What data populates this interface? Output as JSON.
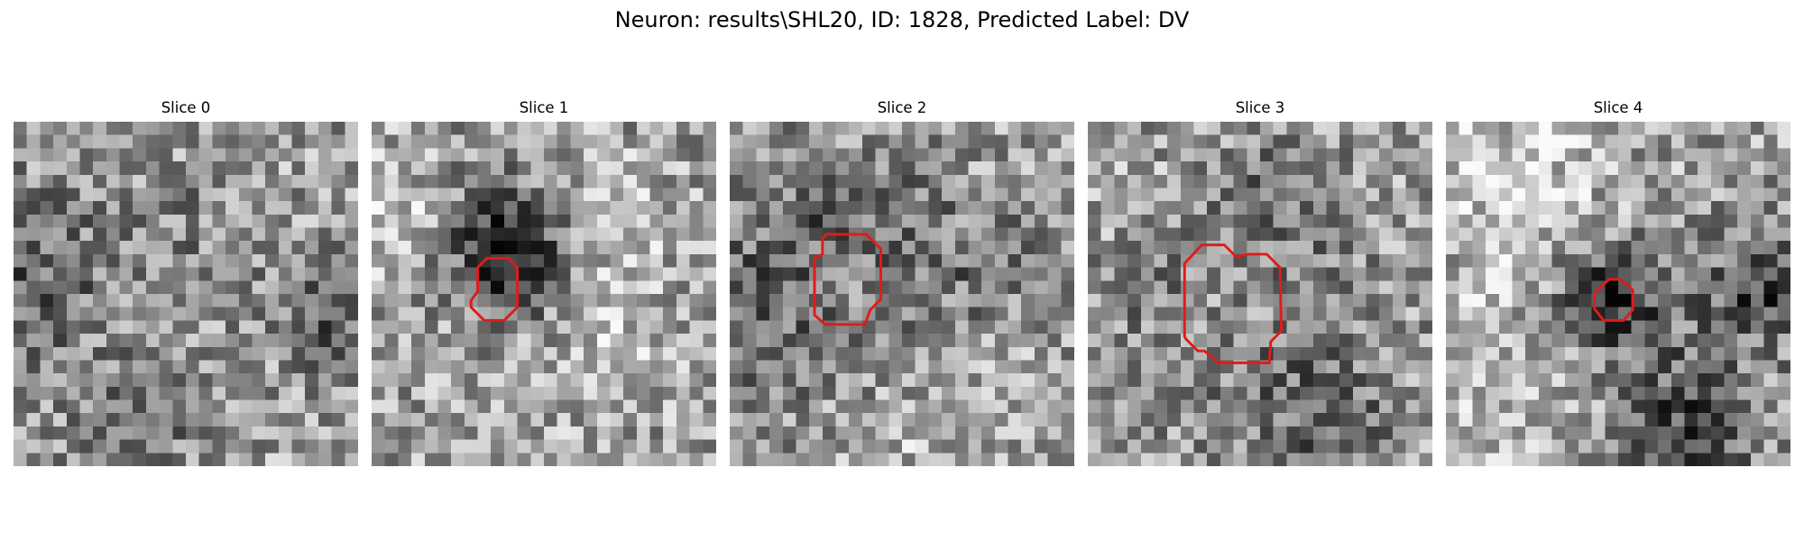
{
  "figure": {
    "title": "Neuron: results\\SHL20, ID: 1828, Predicted Label: DV"
  },
  "contour_color": "#e01b1b",
  "slices": [
    {
      "title": "Slice 0",
      "contour": []
    },
    {
      "title": "Slice 1",
      "contour": [
        [
          7.5,
          13.5
        ],
        [
          8,
          12.8
        ],
        [
          8,
          11
        ],
        [
          8.7,
          10.3
        ],
        [
          10.3,
          10.3
        ],
        [
          11,
          11
        ],
        [
          11,
          14
        ],
        [
          10,
          15
        ],
        [
          8.5,
          15
        ],
        [
          7.5,
          14
        ]
      ]
    },
    {
      "title": "Slice 2",
      "contour": [
        [
          6.4,
          10.3
        ],
        [
          7,
          10
        ],
        [
          7,
          8.8
        ],
        [
          7.3,
          8.5
        ],
        [
          10.3,
          8.5
        ],
        [
          11.4,
          9.6
        ],
        [
          11.4,
          13.4
        ],
        [
          10.6,
          14.2
        ],
        [
          10.2,
          15.3
        ],
        [
          7.2,
          15.3
        ],
        [
          6.4,
          14.6
        ]
      ]
    },
    {
      "title": "Slice 3",
      "contour": [
        [
          7.3,
          10.7
        ],
        [
          8.6,
          9.3
        ],
        [
          10.3,
          9.3
        ],
        [
          11.2,
          10.2
        ],
        [
          12.1,
          10
        ],
        [
          13.5,
          10
        ],
        [
          14.5,
          11
        ],
        [
          14.6,
          15.8
        ],
        [
          13.8,
          16.6
        ],
        [
          13.7,
          18.2
        ],
        [
          9.9,
          18.2
        ],
        [
          8.8,
          17.3
        ],
        [
          8.3,
          17.3
        ],
        [
          7.4,
          16.4
        ],
        [
          7.3,
          16.2
        ]
      ]
    },
    {
      "title": "Slice 4",
      "contour": [
        [
          11.6,
          12.6
        ],
        [
          12.3,
          11.9
        ],
        [
          13.2,
          11.9
        ],
        [
          14.1,
          12.7
        ],
        [
          14.1,
          14.2
        ],
        [
          13.4,
          15
        ],
        [
          11.9,
          15
        ],
        [
          11.2,
          14.1
        ],
        [
          11.2,
          13
        ]
      ]
    }
  ]
}
